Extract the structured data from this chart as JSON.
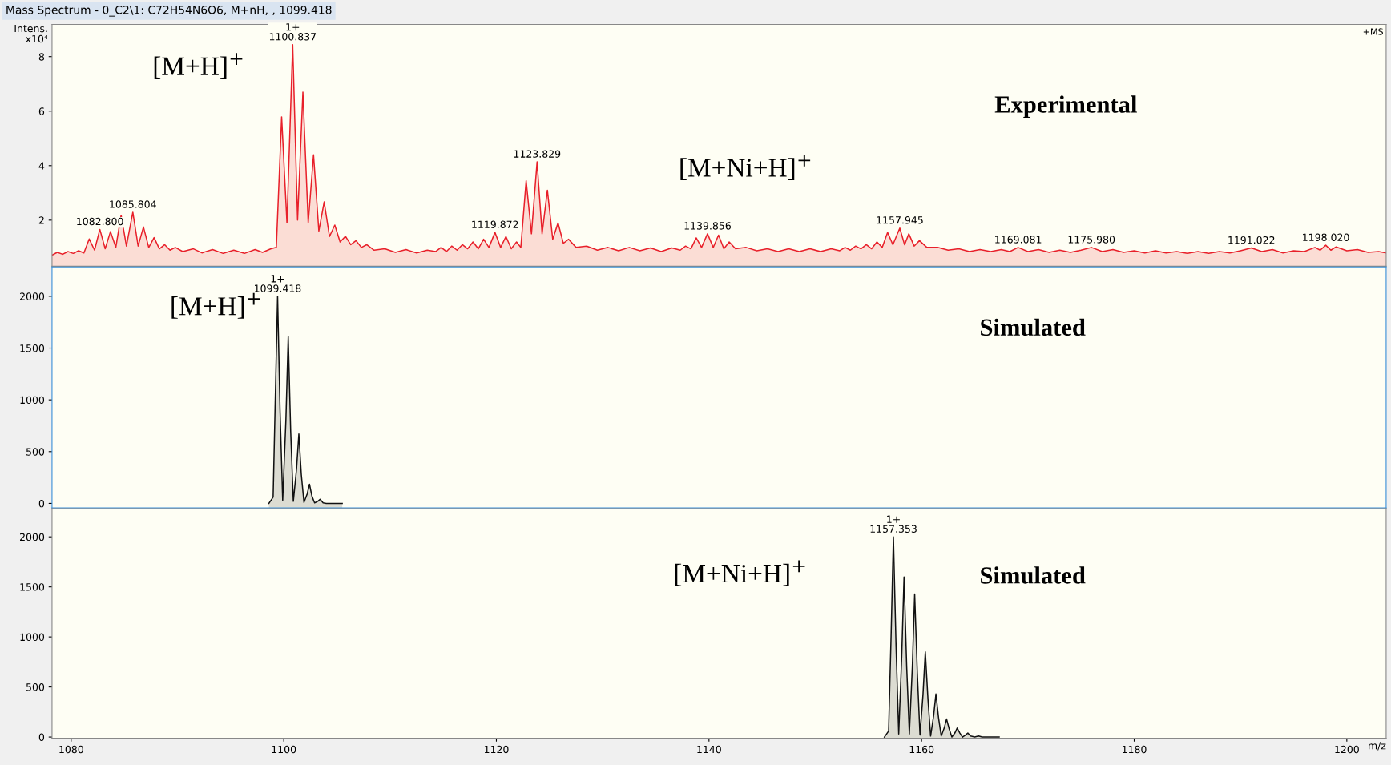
{
  "chart_data": [
    {
      "type": "area",
      "title": "Mass Spectrum - 0_C2\\1: C72H54N6O6, M+nH, , 1099.418",
      "ylabel": "Intens.\nx10⁴",
      "xlim": [
        1078.2,
        1203.7
      ],
      "xticks": [
        1080,
        1100,
        1120,
        1140,
        1160,
        1180,
        1200
      ],
      "ylim": [
        0.31,
        9.18
      ],
      "yticks": [
        2,
        4,
        6,
        8
      ],
      "tick_labels": "y",
      "series": [
        {
          "color": "#e8202a",
          "x": [
            1078.2,
            1078.7,
            1079.2,
            1079.7,
            1080.2,
            1080.7,
            1081.2,
            1081.7,
            1082.2,
            1082.7,
            1083.2,
            1083.7,
            1084.2,
            1084.7,
            1085.2,
            1085.8,
            1086.3,
            1086.8,
            1087.3,
            1087.8,
            1088.3,
            1088.8,
            1089.3,
            1089.8,
            1090.5,
            1091.5,
            1092.3,
            1093.3,
            1094.3,
            1095.3,
            1096.3,
            1097.3,
            1098.0,
            1098.8,
            1099.3,
            1099.8,
            1100.3,
            1100.84,
            1101.3,
            1101.8,
            1102.3,
            1102.8,
            1103.3,
            1103.8,
            1104.3,
            1104.8,
            1105.3,
            1105.8,
            1106.3,
            1106.8,
            1107.3,
            1107.8,
            1108.5,
            1109.5,
            1110.5,
            1111.5,
            1112.5,
            1113.5,
            1114.3,
            1114.8,
            1115.3,
            1115.8,
            1116.3,
            1116.8,
            1117.3,
            1117.8,
            1118.3,
            1118.8,
            1119.3,
            1119.87,
            1120.4,
            1120.9,
            1121.4,
            1121.9,
            1122.3,
            1122.8,
            1123.3,
            1123.83,
            1124.3,
            1124.8,
            1125.3,
            1125.8,
            1126.3,
            1126.8,
            1127.5,
            1128.5,
            1129.5,
            1130.5,
            1131.5,
            1132.5,
            1133.5,
            1134.5,
            1135.5,
            1136.5,
            1137.3,
            1137.8,
            1138.3,
            1138.8,
            1139.3,
            1139.86,
            1140.4,
            1140.9,
            1141.4,
            1141.9,
            1142.5,
            1143.5,
            1144.5,
            1145.5,
            1146.5,
            1147.5,
            1148.5,
            1149.5,
            1150.5,
            1151.5,
            1152.3,
            1152.8,
            1153.3,
            1153.8,
            1154.3,
            1154.8,
            1155.3,
            1155.8,
            1156.3,
            1156.8,
            1157.3,
            1157.95,
            1158.4,
            1158.8,
            1159.3,
            1159.8,
            1160.5,
            1161.5,
            1162.5,
            1163.5,
            1164.5,
            1165.5,
            1166.5,
            1167.5,
            1168.3,
            1169.08,
            1170,
            1171,
            1172,
            1173,
            1174,
            1175,
            1175.98,
            1177,
            1178,
            1179,
            1180,
            1181,
            1182,
            1183,
            1184,
            1185,
            1186,
            1187,
            1188,
            1189,
            1190,
            1191.02,
            1192,
            1193,
            1194,
            1195,
            1196,
            1197,
            1197.5,
            1198.02,
            1198.5,
            1199,
            1200,
            1201,
            1202,
            1203,
            1203.7
          ],
          "values": [
            0.72,
            0.82,
            0.75,
            0.85,
            0.78,
            0.88,
            0.8,
            1.31,
            0.9,
            1.66,
            0.95,
            1.58,
            1.0,
            2.18,
            1.05,
            2.29,
            1.05,
            1.75,
            1.0,
            1.36,
            0.95,
            1.1,
            0.9,
            1.0,
            0.85,
            0.95,
            0.8,
            0.92,
            0.78,
            0.9,
            0.78,
            0.92,
            0.82,
            0.95,
            1.0,
            5.79,
            1.9,
            8.44,
            2.0,
            6.7,
            1.9,
            4.4,
            1.6,
            2.67,
            1.4,
            1.82,
            1.2,
            1.41,
            1.1,
            1.25,
            1.0,
            1.1,
            0.9,
            0.95,
            0.82,
            0.92,
            0.8,
            0.9,
            0.85,
            1.0,
            0.85,
            1.05,
            0.9,
            1.1,
            0.95,
            1.2,
            0.95,
            1.3,
            1.0,
            1.55,
            1.0,
            1.4,
            0.95,
            1.2,
            1.0,
            3.45,
            1.5,
            4.14,
            1.5,
            3.1,
            1.3,
            1.9,
            1.15,
            1.3,
            1.0,
            1.05,
            0.9,
            1.0,
            0.88,
            1.0,
            0.88,
            0.98,
            0.85,
            0.98,
            0.9,
            1.05,
            0.95,
            1.35,
            1.0,
            1.5,
            1.0,
            1.45,
            0.95,
            1.2,
            0.95,
            1.0,
            0.88,
            0.95,
            0.85,
            0.95,
            0.85,
            0.95,
            0.85,
            0.95,
            0.88,
            1.0,
            0.9,
            1.05,
            0.95,
            1.1,
            0.95,
            1.2,
            1.0,
            1.55,
            1.1,
            1.71,
            1.1,
            1.5,
            1.05,
            1.25,
            1.0,
            1.0,
            0.9,
            0.95,
            0.85,
            0.92,
            0.85,
            0.92,
            0.85,
            1.0,
            0.85,
            0.92,
            0.82,
            0.9,
            0.82,
            0.9,
            1.0,
            0.85,
            0.92,
            0.82,
            0.88,
            0.8,
            0.88,
            0.8,
            0.85,
            0.78,
            0.85,
            0.78,
            0.85,
            0.8,
            0.88,
            0.98,
            0.85,
            0.92,
            0.8,
            0.88,
            0.85,
            1.0,
            0.9,
            1.08,
            0.9,
            1.02,
            0.88,
            0.92,
            0.82,
            0.85,
            0.8
          ]
        }
      ],
      "annotations": [
        {
          "text": "1082.800",
          "x": 1082.7,
          "y": 1.66
        },
        {
          "text": "1085.804",
          "x": 1085.8,
          "y": 2.29
        },
        {
          "text": "1+\n1100.837",
          "x": 1100.84,
          "y": 8.44
        },
        {
          "text": "1119.872",
          "x": 1119.87,
          "y": 1.55
        },
        {
          "text": "1123.829",
          "x": 1123.83,
          "y": 4.14
        },
        {
          "text": "1139.856",
          "x": 1139.86,
          "y": 1.5
        },
        {
          "text": "1157.945",
          "x": 1157.95,
          "y": 1.71
        },
        {
          "text": "1169.081",
          "x": 1169.08,
          "y": 1.0
        },
        {
          "text": "1175.980",
          "x": 1175.98,
          "y": 1.0
        },
        {
          "text": "1191.022",
          "x": 1191.02,
          "y": 0.98
        },
        {
          "text": "1198.020",
          "x": 1198.02,
          "y": 1.08
        },
        "[M+H]$^{+}$",
        "Experimental",
        "[M+Ni+H]$^{+}$",
        "+MS"
      ]
    },
    {
      "type": "area",
      "xlim": [
        1078.2,
        1203.7
      ],
      "xticks": [
        1080,
        1100,
        1120,
        1140,
        1160,
        1180,
        1200
      ],
      "ylim": [
        -44,
        2283
      ],
      "yticks": [
        0,
        500,
        1000,
        1500,
        2000
      ],
      "tick_labels": "y",
      "series": [
        {
          "color": "#111111",
          "x": [
            1098.6,
            1099.0,
            1099.2,
            1099.42,
            1099.65,
            1099.9,
            1100.2,
            1100.42,
            1100.65,
            1100.9,
            1101.2,
            1101.42,
            1101.65,
            1101.9,
            1102.2,
            1102.42,
            1102.65,
            1102.9,
            1103.2,
            1103.42,
            1103.7,
            1104.0,
            1105.5
          ],
          "values": [
            0,
            60,
            1000,
            2000,
            900,
            30,
            800,
            1610,
            700,
            20,
            330,
            670,
            280,
            10,
            90,
            185,
            70,
            5,
            20,
            40,
            5,
            0,
            0
          ]
        }
      ],
      "annotations": [
        {
          "text": "1+\n1099.418",
          "x": 1099.42,
          "y": 2000
        },
        "[M+H]$^{+}$",
        "Simulated"
      ]
    },
    {
      "type": "area",
      "xlabel": "m/z",
      "xlim": [
        1078.2,
        1203.7
      ],
      "xticks": [
        1080,
        1100,
        1120,
        1140,
        1160,
        1180,
        1200
      ],
      "ylim": [
        -12,
        2281
      ],
      "yticks": [
        0,
        500,
        1000,
        1500,
        2000
      ],
      "series": [
        {
          "color": "#111111",
          "x": [
            1156.5,
            1156.9,
            1157.13,
            1157.35,
            1157.6,
            1157.85,
            1158.13,
            1158.35,
            1158.6,
            1158.85,
            1159.13,
            1159.35,
            1159.6,
            1159.85,
            1160.13,
            1160.35,
            1160.6,
            1160.85,
            1161.13,
            1161.35,
            1161.6,
            1161.85,
            1162.13,
            1162.35,
            1162.6,
            1162.85,
            1163.13,
            1163.35,
            1163.6,
            1163.85,
            1164.13,
            1164.35,
            1164.6,
            1165.0,
            1165.35,
            1165.7,
            1167.3
          ],
          "values": [
            0,
            60,
            1000,
            2000,
            900,
            30,
            800,
            1600,
            700,
            30,
            700,
            1430,
            640,
            20,
            420,
            850,
            380,
            10,
            210,
            430,
            190,
            10,
            90,
            180,
            80,
            0,
            40,
            90,
            40,
            0,
            20,
            40,
            10,
            0,
            10,
            0,
            0
          ]
        }
      ],
      "annotations": [
        {
          "text": "1+\n1157.353",
          "x": 1157.35,
          "y": 2000
        },
        "[M+Ni+H]$^{+}$",
        "Simulated"
      ]
    }
  ]
}
